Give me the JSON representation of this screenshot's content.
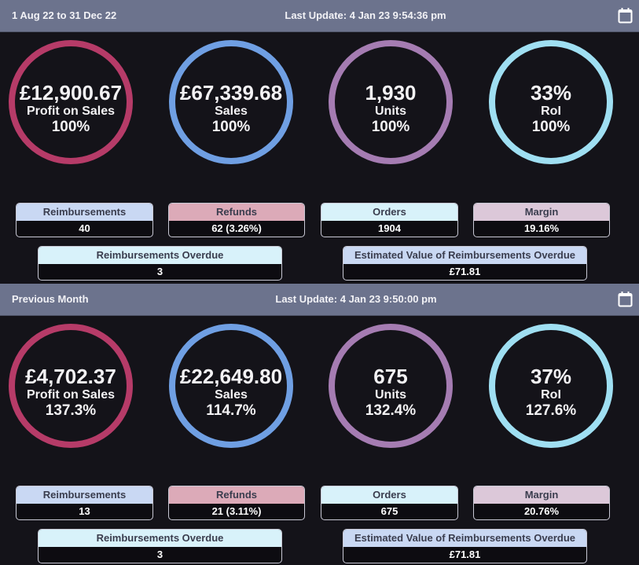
{
  "colors": {
    "header_bg": "#6c738d",
    "page_bg": "#141319",
    "profit_ring": "#b63b68",
    "sales_ring": "#6f9fe3",
    "units_ring": "#a57cb2",
    "roi_ring": "#9fdff2",
    "reimbursements_card": "#c9d8f3",
    "refunds_card": "#dcaab8",
    "orders_card": "#d8f2fa",
    "margin_card": "#dcc8d9",
    "overdue_card": "#d8f2fa",
    "est_value_card": "#c9d8f3"
  },
  "sections": [
    {
      "period": "1 Aug 22 to 31 Dec 22",
      "last_update": "Last Update: 4 Jan 23 9:54:36 pm",
      "calendar_icon": "calendar-icon",
      "metrics": {
        "profit": {
          "value": "£12,900.67",
          "label": "Profit on Sales",
          "pct": "100%"
        },
        "sales": {
          "value": "£67,339.68",
          "label": "Sales",
          "pct": "100%"
        },
        "units": {
          "value": "1,930",
          "label": "Units",
          "pct": "100%"
        },
        "roi": {
          "value": "33%",
          "label": "RoI",
          "pct": "100%"
        }
      },
      "cards": {
        "reimbursements": {
          "title": "Reimbursements",
          "value": "40"
        },
        "refunds": {
          "title": "Refunds",
          "value": "62 (3.26%)"
        },
        "orders": {
          "title": "Orders",
          "value": "1904"
        },
        "margin": {
          "title": "Margin",
          "value": "19.16%"
        },
        "overdue": {
          "title": "Reimbursements Overdue",
          "value": "3"
        },
        "est_value": {
          "title": "Estimated Value of Reimbursements Overdue",
          "value": "£71.81"
        }
      }
    },
    {
      "period": "Previous Month",
      "last_update": "Last Update: 4 Jan 23 9:50:00 pm",
      "calendar_icon": "calendar-icon",
      "metrics": {
        "profit": {
          "value": "£4,702.37",
          "label": "Profit on Sales",
          "pct": "137.3%"
        },
        "sales": {
          "value": "£22,649.80",
          "label": "Sales",
          "pct": "114.7%"
        },
        "units": {
          "value": "675",
          "label": "Units",
          "pct": "132.4%"
        },
        "roi": {
          "value": "37%",
          "label": "RoI",
          "pct": "127.6%"
        }
      },
      "cards": {
        "reimbursements": {
          "title": "Reimbursements",
          "value": "13"
        },
        "refunds": {
          "title": "Refunds",
          "value": "21 (3.11%)"
        },
        "orders": {
          "title": "Orders",
          "value": "675"
        },
        "margin": {
          "title": "Margin",
          "value": "20.76%"
        },
        "overdue": {
          "title": "Reimbursements Overdue",
          "value": "3"
        },
        "est_value": {
          "title": "Estimated Value of Reimbursements Overdue",
          "value": "£71.81"
        }
      }
    }
  ]
}
